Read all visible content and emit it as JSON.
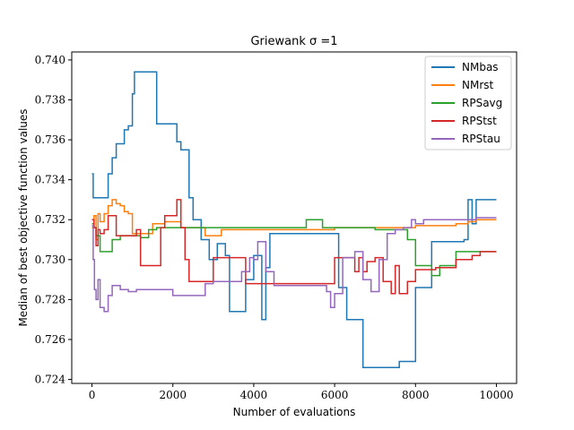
{
  "chart_data": {
    "type": "line",
    "title": "Griewank σ =1",
    "xlabel": "Number of evaluations",
    "ylabel": "Median of best objective function values",
    "xlim": [
      -500,
      10500
    ],
    "ylim": [
      0.7238,
      0.7404
    ],
    "xticks": [
      0,
      2000,
      4000,
      6000,
      8000,
      10000
    ],
    "yticks": [
      0.724,
      0.726,
      0.728,
      0.73,
      0.732,
      0.734,
      0.736,
      0.738,
      0.74
    ],
    "ytick_labels": [
      "0.724",
      "0.726",
      "0.728",
      "0.730",
      "0.732",
      "0.734",
      "0.736",
      "0.738",
      "0.740"
    ],
    "grid": false,
    "legend_position": "top-right",
    "series": [
      {
        "name": "NMbas",
        "color": "#1f77b4",
        "x": [
          0,
          30,
          60,
          100,
          200,
          300,
          400,
          500,
          600,
          700,
          800,
          900,
          1000,
          1050,
          1100,
          1200,
          1400,
          1500,
          1600,
          1800,
          2000,
          2100,
          2200,
          2300,
          2400,
          2500,
          2600,
          2700,
          2800,
          2900,
          3000,
          3100,
          3200,
          3300,
          3400,
          3500,
          3600,
          3800,
          4000,
          4200,
          4300,
          4400,
          4600,
          4800,
          5000,
          5500,
          6000,
          6100,
          6300,
          6500,
          6700,
          7000,
          7400,
          7600,
          7800,
          8000,
          8200,
          8400,
          8600,
          8800,
          9000,
          9200,
          9300,
          9400,
          9500,
          9600,
          10000
        ],
        "y": [
          0.7343,
          0.7331,
          0.7331,
          0.7331,
          0.7331,
          0.7331,
          0.7343,
          0.7351,
          0.7358,
          0.7358,
          0.7365,
          0.7367,
          0.7383,
          0.7394,
          0.7394,
          0.7394,
          0.7394,
          0.7394,
          0.7368,
          0.7368,
          0.7368,
          0.7359,
          0.7355,
          0.7355,
          0.7331,
          0.732,
          0.732,
          0.731,
          0.731,
          0.73,
          0.73,
          0.7308,
          0.7308,
          0.7302,
          0.7274,
          0.7274,
          0.7274,
          0.729,
          0.7302,
          0.727,
          0.7296,
          0.7313,
          0.7313,
          0.7313,
          0.7313,
          0.7313,
          0.7313,
          0.7286,
          0.727,
          0.727,
          0.7246,
          0.7246,
          0.7246,
          0.7249,
          0.7249,
          0.7286,
          0.7286,
          0.7309,
          0.7309,
          0.7309,
          0.7309,
          0.731,
          0.733,
          0.7318,
          0.733,
          0.733,
          0.733
        ]
      },
      {
        "name": "NMrst",
        "color": "#ff7f0e",
        "x": [
          0,
          50,
          100,
          150,
          200,
          300,
          400,
          500,
          600,
          700,
          800,
          900,
          1000,
          1200,
          1500,
          1800,
          2000,
          2200,
          2500,
          2800,
          3000,
          3200,
          3500,
          4000,
          5000,
          6000,
          7000,
          8000,
          9000,
          9300,
          9500,
          10000
        ],
        "y": [
          0.7316,
          0.7322,
          0.731,
          0.7323,
          0.7319,
          0.7323,
          0.7327,
          0.733,
          0.7328,
          0.7327,
          0.7324,
          0.7323,
          0.7313,
          0.7313,
          0.7318,
          0.7319,
          0.7319,
          0.7316,
          0.7316,
          0.7312,
          0.7312,
          0.7315,
          0.7315,
          0.7315,
          0.7315,
          0.7316,
          0.7316,
          0.7317,
          0.7318,
          0.7319,
          0.732,
          0.732
        ]
      },
      {
        "name": "RPSavg",
        "color": "#2ca02c",
        "x": [
          0,
          50,
          100,
          200,
          300,
          500,
          700,
          900,
          1200,
          1400,
          1600,
          1800,
          2000,
          3000,
          4000,
          5000,
          5300,
          5700,
          6000,
          7000,
          7500,
          7800,
          8000,
          8200,
          8400,
          8600,
          9000,
          9500,
          10000
        ],
        "y": [
          0.7318,
          0.7316,
          0.7312,
          0.7304,
          0.7304,
          0.731,
          0.7312,
          0.7312,
          0.7311,
          0.7315,
          0.7316,
          0.7316,
          0.7316,
          0.7316,
          0.7316,
          0.7316,
          0.732,
          0.7316,
          0.7316,
          0.7315,
          0.7315,
          0.731,
          0.7297,
          0.7297,
          0.7292,
          0.7297,
          0.7304,
          0.7304,
          0.7304
        ]
      },
      {
        "name": "RPStst",
        "color": "#d62728",
        "x": [
          0,
          50,
          100,
          150,
          200,
          300,
          400,
          600,
          800,
          1000,
          1100,
          1200,
          1400,
          1500,
          1700,
          1800,
          2000,
          2100,
          2200,
          2300,
          2400,
          2600,
          2800,
          3000,
          3200,
          3400,
          3600,
          3800,
          4000,
          4500,
          5000,
          5500,
          6000,
          6200,
          6400,
          6500,
          6600,
          6700,
          6800,
          7000,
          7200,
          7400,
          7500,
          7600,
          7800,
          8000,
          8200,
          8500,
          9000,
          9400,
          9600,
          10000
        ],
        "y": [
          0.732,
          0.7316,
          0.7307,
          0.7315,
          0.7313,
          0.7315,
          0.7322,
          0.7312,
          0.7312,
          0.7312,
          0.7315,
          0.7297,
          0.7297,
          0.7297,
          0.7316,
          0.7322,
          0.7322,
          0.733,
          0.7316,
          0.73,
          0.7289,
          0.7289,
          0.7289,
          0.7301,
          0.7301,
          0.7301,
          0.7301,
          0.7288,
          0.7288,
          0.7288,
          0.7288,
          0.7288,
          0.7301,
          0.7301,
          0.7301,
          0.7294,
          0.7301,
          0.7294,
          0.7299,
          0.7301,
          0.7289,
          0.7283,
          0.7297,
          0.7283,
          0.7289,
          0.7295,
          0.7295,
          0.7296,
          0.73,
          0.7302,
          0.7304,
          0.7304
        ]
      },
      {
        "name": "RPStau",
        "color": "#9467bd",
        "x": [
          0,
          30,
          60,
          100,
          150,
          200,
          300,
          400,
          500,
          700,
          900,
          1100,
          1500,
          1800,
          2000,
          2300,
          2500,
          2800,
          3000,
          3300,
          3500,
          3700,
          3900,
          4000,
          4100,
          4300,
          4500,
          5000,
          5500,
          5800,
          5900,
          6000,
          6200,
          6500,
          6700,
          6900,
          7100,
          7300,
          7500,
          7700,
          7900,
          8000,
          8200,
          8500,
          9000,
          9500,
          10000
        ],
        "y": [
          0.7317,
          0.73,
          0.7285,
          0.728,
          0.729,
          0.7276,
          0.7274,
          0.7282,
          0.7287,
          0.7285,
          0.7284,
          0.7285,
          0.7285,
          0.7285,
          0.7282,
          0.7282,
          0.7282,
          0.7288,
          0.7289,
          0.7289,
          0.7289,
          0.7294,
          0.7301,
          0.73,
          0.7309,
          0.7294,
          0.7287,
          0.7287,
          0.7287,
          0.7284,
          0.7276,
          0.7283,
          0.7301,
          0.7304,
          0.729,
          0.7284,
          0.73,
          0.7313,
          0.7315,
          0.7316,
          0.732,
          0.7318,
          0.732,
          0.732,
          0.732,
          0.7321,
          0.7321
        ]
      }
    ]
  }
}
